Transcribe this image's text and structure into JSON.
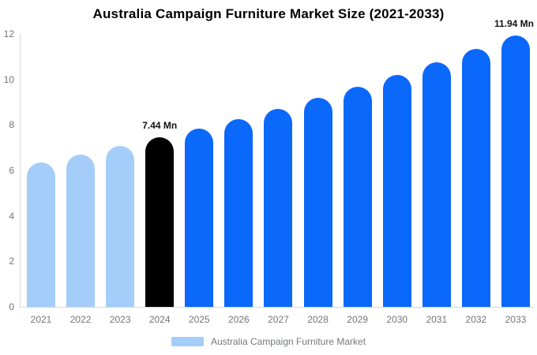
{
  "chart_data": {
    "type": "bar",
    "title": "Australia Campaign Furniture Market Size (2021-2033)",
    "categories": [
      "2021",
      "2022",
      "2023",
      "2024",
      "2025",
      "2026",
      "2027",
      "2028",
      "2029",
      "2030",
      "2031",
      "2032",
      "2033"
    ],
    "series": [
      {
        "name": "Australia Campaign Furniture Market",
        "values": [
          6.35,
          6.7,
          7.06,
          7.44,
          7.84,
          8.27,
          8.71,
          9.18,
          9.68,
          10.2,
          10.75,
          11.33,
          11.94
        ]
      }
    ],
    "point_colors": [
      "#a4cdf9",
      "#a4cdf9",
      "#a4cdf9",
      "#000000",
      "#0a68fb",
      "#0a68fb",
      "#0a68fb",
      "#0a68fb",
      "#0a68fb",
      "#0a68fb",
      "#0a68fb",
      "#0a68fb",
      "#0a68fb"
    ],
    "value_labels": [
      {
        "category": "2024",
        "text": "7.44 Mn"
      },
      {
        "category": "2033",
        "text": "11.94 Mn"
      }
    ],
    "ylim": [
      0,
      12
    ],
    "yticks": [
      0,
      2,
      4,
      6,
      8,
      10,
      12
    ],
    "xlabel": "",
    "ylabel": "",
    "grid": false,
    "legend_position": "bottom",
    "legend": [
      {
        "label": "Australia Campaign Furniture Market",
        "color": "#a4cdf9"
      }
    ],
    "colors": {
      "historical_bar": "#a4cdf9",
      "base_year_bar": "#000000",
      "forecast_bar": "#0a68fb",
      "axis_line": "#d9d9d9",
      "tick_label_text": "#757575",
      "title_text": "#000000",
      "value_label_text": "#111111",
      "legend_text": "#75787b"
    }
  }
}
